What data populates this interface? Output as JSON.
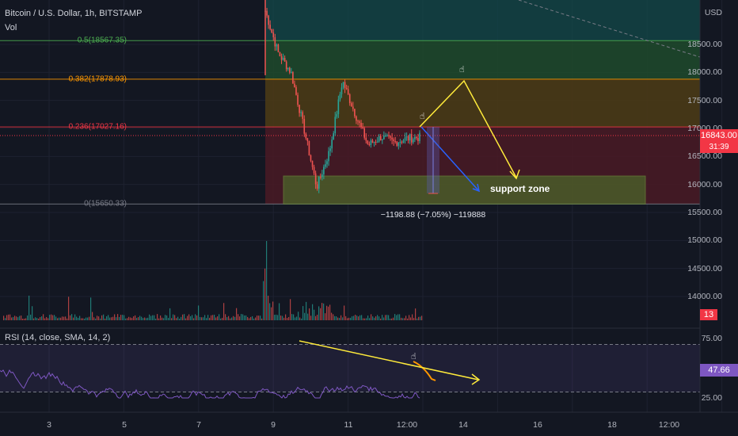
{
  "header": {
    "symbol": "Bitcoin / U.S. Dollar, 1h, BITSTAMP",
    "vol_label": "Vol"
  },
  "price_axis": {
    "currency": "USD",
    "ticks": [
      "18500.00",
      "18000.00",
      "17500.00",
      "17000.00",
      "16500.00",
      "16000.00",
      "15500.00",
      "15000.00",
      "14500.00",
      "14000.00"
    ],
    "tick_values": [
      18500,
      18000,
      17500,
      17000,
      16500,
      16000,
      15500,
      15000,
      14500,
      14000
    ],
    "current_price": "16843.00",
    "countdown": "31:39",
    "volume_badge": "13"
  },
  "time_axis": {
    "ticks": [
      "3",
      "5",
      "7",
      "9",
      "11",
      "12:00",
      "14",
      "16",
      "18",
      "12:00"
    ]
  },
  "fib_levels": [
    {
      "label": "0.5(18567.35)",
      "price": 18567.35,
      "color": "#4caf50"
    },
    {
      "label": "0.382(17878.93)",
      "price": 17878.93,
      "color": "#ff9800"
    },
    {
      "label": "0.236(17027.16)",
      "price": 17027.16,
      "color": "#f23645"
    },
    {
      "label": "0(15650.33)",
      "price": 15650.33,
      "color": "#787b86"
    }
  ],
  "annotations": {
    "measure_text": "−1198.88 (−7.05%) −119888",
    "support_zone_label": "support zone",
    "support_zone_range": [
      15650.33,
      16150
    ]
  },
  "rsi": {
    "label": "RSI (14, close, SMA, 14, 2)",
    "value": "47.66",
    "ticks": [
      "75.00",
      "25.00"
    ],
    "tick_values": [
      75,
      25
    ],
    "upper_band": 70,
    "lower_band": 30
  },
  "colors": {
    "background": "#131722",
    "up": "#26a69a",
    "down": "#ef5350",
    "rsi_line": "#7e57c2",
    "yellow": "#ffeb3b",
    "blue": "#2962ff",
    "orange": "#ff9800",
    "price_badge": "#f23645",
    "rsi_badge": "#7e57c2"
  },
  "chart_data": {
    "type": "line",
    "title": "Bitcoin / U.S. Dollar, 1h, BITSTAMP",
    "xlabel": "",
    "ylabel": "USD",
    "x": [
      "9",
      "9",
      "9",
      "10",
      "10",
      "10",
      "11",
      "11",
      "11",
      "12",
      "12",
      "12",
      "12:00"
    ],
    "series": [
      {
        "values": [
          19100,
          18350,
          18000,
          17000,
          15950,
          16600,
          17850,
          17250,
          16700,
          16850,
          16750,
          16820,
          16843
        ]
      }
    ],
    "ylim": [
      13700,
      19200
    ],
    "grid": true
  }
}
